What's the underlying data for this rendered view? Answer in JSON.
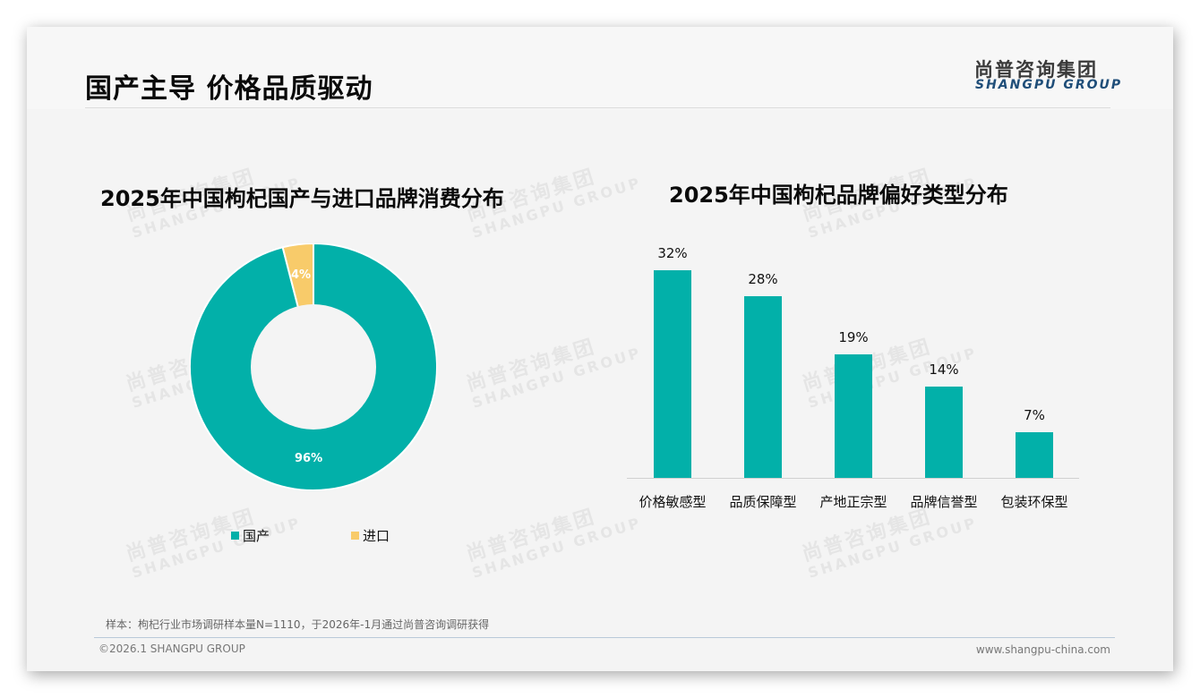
{
  "header": {
    "title": "国产主导 价格品质驱动",
    "logo_cn": "尚普咨询集团",
    "logo_en": "SHANGPU GROUP"
  },
  "watermark": {
    "cn": "尚普咨询集团",
    "en": "SHANGPU GROUP"
  },
  "colors": {
    "primary": "#02b0a9",
    "secondary": "#f8cb6a",
    "background": "#f4f4f4",
    "logo_blue": "#1f4e79"
  },
  "donut_chart": {
    "title": "2025年中国枸杞国产与进口品牌消费分布",
    "slices": [
      {
        "label": "国产",
        "value_label": "96%",
        "color": "#02b0a9"
      },
      {
        "label": "进口",
        "value_label": "4%",
        "color": "#f8cb6a"
      }
    ]
  },
  "bar_chart": {
    "title": "2025年中国枸杞品牌偏好类型分布",
    "bars": [
      {
        "category": "价格敏感型",
        "value_label": "32%"
      },
      {
        "category": "品质保障型",
        "value_label": "28%"
      },
      {
        "category": "产地正宗型",
        "value_label": "19%"
      },
      {
        "category": "品牌信誉型",
        "value_label": "14%"
      },
      {
        "category": "包装环保型",
        "value_label": "7%"
      }
    ]
  },
  "footer": {
    "note": "样本：枸杞行业市场调研样本量N=1110，于2026年-1月通过尚普咨询调研获得",
    "copyright": "©2026.1 SHANGPU GROUP",
    "website": "www.shangpu-china.com"
  },
  "chart_data": [
    {
      "type": "pie",
      "title": "2025年中国枸杞国产与进口品牌消费分布",
      "categories": [
        "国产",
        "进口"
      ],
      "values": [
        96,
        4
      ],
      "unit": "%",
      "donut": true,
      "legend_position": "bottom"
    },
    {
      "type": "bar",
      "title": "2025年中国枸杞品牌偏好类型分布",
      "categories": [
        "价格敏感型",
        "品质保障型",
        "产地正宗型",
        "品牌信誉型",
        "包装环保型"
      ],
      "values": [
        32,
        28,
        19,
        14,
        7
      ],
      "unit": "%",
      "xlabel": "",
      "ylabel": "",
      "ylim": [
        0,
        35
      ],
      "grid": false,
      "data_labels": true
    }
  ]
}
